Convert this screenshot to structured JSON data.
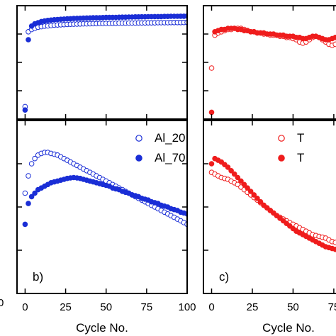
{
  "chart_data": [
    {
      "id": "top-center",
      "type": "scatter",
      "xlim": [
        -5,
        100
      ],
      "ylim": [
        0,
        1
      ],
      "xticks": [
        0,
        25,
        50,
        75,
        100
      ],
      "series": [
        {
          "name": "Al_20",
          "color": "#1a2ed6",
          "marker": "open-circle",
          "x": [
            0,
            2,
            4,
            6,
            8,
            10,
            12,
            14,
            16,
            18,
            20,
            22,
            24,
            26,
            28,
            30,
            32,
            34,
            36,
            38,
            40,
            42,
            44,
            46,
            48,
            50,
            52,
            54,
            56,
            58,
            60,
            62,
            64,
            66,
            68,
            70,
            72,
            74,
            76,
            78,
            80,
            82,
            84,
            86,
            88,
            90,
            92,
            94,
            96,
            98,
            100
          ],
          "y": [
            0.11,
            0.77,
            0.79,
            0.8,
            0.81,
            0.815,
            0.82,
            0.822,
            0.825,
            0.828,
            0.83,
            0.832,
            0.833,
            0.835,
            0.836,
            0.837,
            0.838,
            0.839,
            0.84,
            0.84,
            0.841,
            0.842,
            0.842,
            0.843,
            0.843,
            0.844,
            0.844,
            0.845,
            0.845,
            0.846,
            0.846,
            0.846,
            0.847,
            0.847,
            0.847,
            0.848,
            0.848,
            0.848,
            0.849,
            0.849,
            0.849,
            0.85,
            0.85,
            0.85,
            0.85,
            0.851,
            0.851,
            0.851,
            0.851,
            0.852,
            0.852
          ]
        },
        {
          "name": "Al_70",
          "color": "#1a2ed6",
          "marker": "filled-circle",
          "x": [
            0,
            2,
            4,
            6,
            8,
            10,
            12,
            14,
            16,
            18,
            20,
            22,
            24,
            26,
            28,
            30,
            32,
            34,
            36,
            38,
            40,
            42,
            44,
            46,
            48,
            50,
            52,
            54,
            56,
            58,
            60,
            62,
            64,
            66,
            68,
            70,
            72,
            74,
            76,
            78,
            80,
            82,
            84,
            86,
            88,
            90,
            92,
            94,
            96,
            98,
            100
          ],
          "y": [
            0.08,
            0.7,
            0.82,
            0.84,
            0.85,
            0.86,
            0.865,
            0.87,
            0.873,
            0.876,
            0.878,
            0.88,
            0.882,
            0.884,
            0.885,
            0.887,
            0.888,
            0.889,
            0.89,
            0.891,
            0.892,
            0.893,
            0.893,
            0.894,
            0.895,
            0.896,
            0.896,
            0.897,
            0.897,
            0.898,
            0.899,
            0.899,
            0.9,
            0.9,
            0.901,
            0.901,
            0.902,
            0.902,
            0.903,
            0.903,
            0.904,
            0.904,
            0.904,
            0.905,
            0.905,
            0.906,
            0.906,
            0.906,
            0.907,
            0.907,
            0.908
          ]
        }
      ]
    },
    {
      "id": "top-right",
      "type": "scatter",
      "xlim": [
        -5,
        82
      ],
      "ylim": [
        0,
        1
      ],
      "xticks": [
        0,
        25,
        50,
        75
      ],
      "series": [
        {
          "name": "",
          "color": "#ef1c1c",
          "marker": "open-circle",
          "x": [
            0,
            2,
            4,
            6,
            8,
            10,
            12,
            14,
            16,
            18,
            20,
            22,
            24,
            26,
            28,
            30,
            32,
            34,
            36,
            38,
            40,
            42,
            44,
            46,
            48,
            50,
            52,
            54,
            56,
            58,
            60,
            62,
            64,
            66,
            68,
            70,
            72,
            74,
            76,
            78,
            80,
            82
          ],
          "y": [
            0.45,
            0.74,
            0.76,
            0.77,
            0.78,
            0.79,
            0.79,
            0.8,
            0.8,
            0.8,
            0.79,
            0.78,
            0.77,
            0.77,
            0.76,
            0.76,
            0.75,
            0.75,
            0.74,
            0.74,
            0.74,
            0.73,
            0.73,
            0.72,
            0.72,
            0.71,
            0.7,
            0.68,
            0.67,
            0.68,
            0.7,
            0.72,
            0.73,
            0.72,
            0.7,
            0.68,
            0.66,
            0.65,
            0.66,
            0.68,
            0.7,
            0.72
          ]
        },
        {
          "name": "",
          "color": "#ef1c1c",
          "marker": "filled-circle",
          "x": [
            0,
            2,
            4,
            6,
            8,
            10,
            12,
            14,
            16,
            18,
            20,
            22,
            24,
            26,
            28,
            30,
            32,
            34,
            36,
            38,
            40,
            42,
            44,
            46,
            48,
            50,
            52,
            54,
            56,
            58,
            60,
            62,
            64,
            66,
            68,
            70,
            72,
            74,
            76,
            78,
            80,
            82
          ],
          "y": [
            0.06,
            0.77,
            0.78,
            0.79,
            0.79,
            0.8,
            0.8,
            0.8,
            0.79,
            0.79,
            0.78,
            0.78,
            0.77,
            0.77,
            0.76,
            0.76,
            0.76,
            0.75,
            0.75,
            0.75,
            0.74,
            0.74,
            0.74,
            0.73,
            0.73,
            0.73,
            0.72,
            0.72,
            0.71,
            0.71,
            0.72,
            0.73,
            0.73,
            0.72,
            0.71,
            0.7,
            0.7,
            0.71,
            0.72,
            0.73,
            0.74,
            0.73
          ]
        }
      ]
    },
    {
      "id": "bottom-center",
      "type": "scatter",
      "panel_label": "b)",
      "xlim": [
        -5,
        100
      ],
      "ylim": [
        0,
        1
      ],
      "xticks": [
        0,
        25,
        50,
        75,
        100
      ],
      "xlabel": "Cycle No.",
      "legend": "top-right",
      "series": [
        {
          "name": "Al_20",
          "color": "#1a2ed6",
          "marker": "open-circle",
          "x": [
            0,
            2,
            4,
            6,
            8,
            10,
            12,
            14,
            16,
            18,
            20,
            22,
            24,
            26,
            28,
            30,
            32,
            34,
            36,
            38,
            40,
            42,
            44,
            46,
            48,
            50,
            52,
            54,
            56,
            58,
            60,
            62,
            64,
            66,
            68,
            70,
            72,
            74,
            76,
            78,
            80,
            82,
            84,
            86,
            88,
            90,
            92,
            94,
            96,
            98,
            100
          ],
          "y": [
            0.58,
            0.68,
            0.75,
            0.78,
            0.8,
            0.81,
            0.815,
            0.815,
            0.81,
            0.805,
            0.8,
            0.79,
            0.78,
            0.77,
            0.76,
            0.75,
            0.74,
            0.73,
            0.72,
            0.71,
            0.7,
            0.69,
            0.68,
            0.67,
            0.66,
            0.65,
            0.64,
            0.63,
            0.62,
            0.61,
            0.6,
            0.59,
            0.58,
            0.57,
            0.56,
            0.55,
            0.54,
            0.53,
            0.52,
            0.51,
            0.5,
            0.49,
            0.48,
            0.47,
            0.46,
            0.45,
            0.44,
            0.43,
            0.42,
            0.41,
            0.4
          ]
        },
        {
          "name": "Al_70",
          "color": "#1a2ed6",
          "marker": "filled-circle",
          "x": [
            0,
            2,
            4,
            6,
            8,
            10,
            12,
            14,
            16,
            18,
            20,
            22,
            24,
            26,
            28,
            30,
            32,
            34,
            36,
            38,
            40,
            42,
            44,
            46,
            48,
            50,
            52,
            54,
            56,
            58,
            60,
            62,
            64,
            66,
            68,
            70,
            72,
            74,
            76,
            78,
            80,
            82,
            84,
            86,
            88,
            90,
            92,
            94,
            96,
            98,
            100
          ],
          "y": [
            0.4,
            0.52,
            0.56,
            0.58,
            0.6,
            0.61,
            0.62,
            0.63,
            0.64,
            0.645,
            0.65,
            0.655,
            0.66,
            0.665,
            0.668,
            0.67,
            0.668,
            0.665,
            0.66,
            0.655,
            0.65,
            0.645,
            0.64,
            0.635,
            0.63,
            0.625,
            0.62,
            0.61,
            0.605,
            0.6,
            0.59,
            0.585,
            0.58,
            0.57,
            0.565,
            0.56,
            0.55,
            0.545,
            0.54,
            0.53,
            0.525,
            0.52,
            0.51,
            0.505,
            0.5,
            0.49,
            0.485,
            0.48,
            0.47,
            0.465,
            0.46
          ]
        }
      ]
    },
    {
      "id": "bottom-right",
      "type": "scatter",
      "panel_label": "c)",
      "xlim": [
        -5,
        82
      ],
      "ylim": [
        0,
        1
      ],
      "xticks": [
        0,
        25,
        50,
        75
      ],
      "xlabel": "Cycle No.",
      "legend": "top-right",
      "series": [
        {
          "name": "T",
          "color": "#ef1c1c",
          "marker": "open-circle",
          "x": [
            0,
            2,
            4,
            6,
            8,
            10,
            12,
            14,
            16,
            18,
            20,
            22,
            24,
            26,
            28,
            30,
            32,
            34,
            36,
            38,
            40,
            42,
            44,
            46,
            48,
            50,
            52,
            54,
            56,
            58,
            60,
            62,
            64,
            66,
            68,
            70,
            72,
            74,
            76,
            78,
            80,
            82
          ],
          "y": [
            0.7,
            0.69,
            0.68,
            0.67,
            0.665,
            0.66,
            0.65,
            0.64,
            0.63,
            0.615,
            0.6,
            0.585,
            0.57,
            0.555,
            0.54,
            0.525,
            0.51,
            0.495,
            0.48,
            0.465,
            0.45,
            0.44,
            0.43,
            0.42,
            0.41,
            0.4,
            0.39,
            0.38,
            0.37,
            0.36,
            0.35,
            0.34,
            0.335,
            0.33,
            0.325,
            0.32,
            0.31,
            0.3,
            0.295,
            0.29,
            0.285,
            0.28
          ]
        },
        {
          "name": "T",
          "color": "#ef1c1c",
          "marker": "filled-circle",
          "x": [
            0,
            2,
            4,
            6,
            8,
            10,
            12,
            14,
            16,
            18,
            20,
            22,
            24,
            26,
            28,
            30,
            32,
            34,
            36,
            38,
            40,
            42,
            44,
            46,
            48,
            50,
            52,
            54,
            56,
            58,
            60,
            62,
            64,
            66,
            68,
            70,
            72,
            74,
            76,
            78,
            80,
            82
          ],
          "y": [
            0.75,
            0.78,
            0.77,
            0.76,
            0.745,
            0.73,
            0.71,
            0.69,
            0.67,
            0.65,
            0.63,
            0.61,
            0.59,
            0.57,
            0.55,
            0.53,
            0.51,
            0.495,
            0.48,
            0.465,
            0.45,
            0.435,
            0.42,
            0.405,
            0.39,
            0.375,
            0.36,
            0.35,
            0.34,
            0.33,
            0.32,
            0.31,
            0.3,
            0.29,
            0.28,
            0.27,
            0.265,
            0.26,
            0.255,
            0.25,
            0.245,
            0.24
          ]
        }
      ]
    }
  ],
  "left_axis_fragment": {
    "tick_label": "0"
  }
}
